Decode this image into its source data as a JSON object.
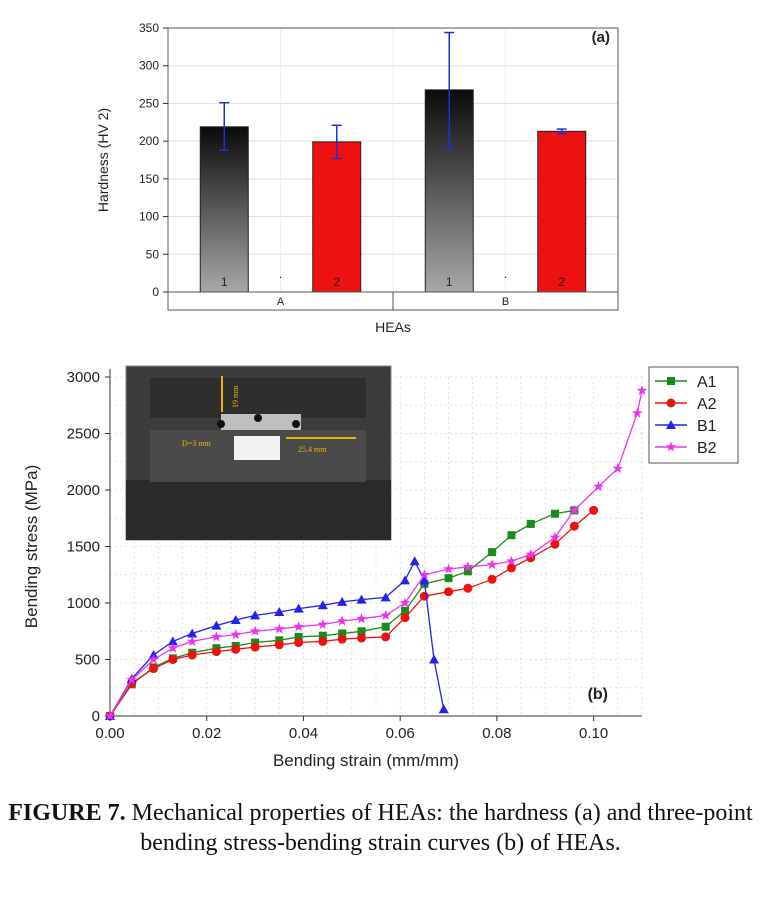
{
  "chart_data": [
    {
      "type": "bar",
      "panel_label": "(a)",
      "ylabel": "Hardness (HV 2)",
      "xlabel": "HEAs",
      "ylim": [
        0,
        350
      ],
      "yticks": [
        0,
        50,
        100,
        150,
        200,
        250,
        300,
        350
      ],
      "groups": [
        "A",
        "B"
      ],
      "categories": [
        "1",
        "2",
        "1",
        "2"
      ],
      "group_of_category": [
        "A",
        "A",
        "B",
        "B"
      ],
      "values": [
        219,
        199,
        268,
        213
      ],
      "errors_low": [
        188,
        177,
        191,
        210
      ],
      "errors_high": [
        251,
        221,
        344,
        216
      ],
      "bar_colors": [
        "gradient-black-gray",
        "#ee1111",
        "gradient-black-gray",
        "#ee1111"
      ],
      "separator_marks": [
        ".",
        "."
      ],
      "grid": true
    },
    {
      "type": "line",
      "panel_label": "(b)",
      "xlabel": "Bending strain (mm/mm)",
      "ylabel": "Bending stress (MPa)",
      "xlim": [
        0,
        0.11
      ],
      "ylim": [
        0,
        3000
      ],
      "xticks": [
        "0.00",
        "0.02",
        "0.04",
        "0.06",
        "0.08",
        "0.10"
      ],
      "yticks": [
        "0",
        "500",
        "1000",
        "1500",
        "2000",
        "2500",
        "3000"
      ],
      "grid": true,
      "legend_position": "top-right",
      "series": [
        {
          "name": "A1",
          "color": "#1a8a1a",
          "marker": "square",
          "x": [
            0.0,
            0.0045,
            0.009,
            0.013,
            0.017,
            0.022,
            0.026,
            0.03,
            0.035,
            0.039,
            0.044,
            0.048,
            0.052,
            0.057,
            0.061,
            0.065,
            0.07,
            0.074,
            0.079,
            0.083,
            0.087,
            0.092,
            0.096
          ],
          "y": [
            0,
            280,
            430,
            510,
            560,
            600,
            620,
            650,
            670,
            700,
            710,
            730,
            750,
            790,
            930,
            1170,
            1220,
            1280,
            1450,
            1600,
            1700,
            1790,
            1820
          ]
        },
        {
          "name": "A2",
          "color": "#ee1111",
          "marker": "circle",
          "x": [
            0.0,
            0.0045,
            0.009,
            0.013,
            0.017,
            0.022,
            0.026,
            0.03,
            0.035,
            0.039,
            0.044,
            0.048,
            0.052,
            0.057,
            0.061,
            0.065,
            0.07,
            0.074,
            0.079,
            0.083,
            0.087,
            0.092,
            0.096,
            0.1
          ],
          "y": [
            0,
            290,
            420,
            500,
            540,
            570,
            590,
            610,
            630,
            650,
            660,
            680,
            690,
            700,
            870,
            1060,
            1100,
            1130,
            1210,
            1310,
            1400,
            1520,
            1680,
            1820
          ]
        },
        {
          "name": "B1",
          "color": "#2222ee",
          "marker": "triangle",
          "x": [
            0.0,
            0.0045,
            0.009,
            0.013,
            0.017,
            0.022,
            0.026,
            0.03,
            0.035,
            0.039,
            0.044,
            0.048,
            0.052,
            0.057,
            0.061,
            0.063,
            0.065,
            0.067,
            0.069
          ],
          "y": [
            0,
            330,
            540,
            660,
            730,
            800,
            850,
            890,
            920,
            950,
            980,
            1010,
            1030,
            1050,
            1200,
            1370,
            1200,
            500,
            60
          ]
        },
        {
          "name": "B2",
          "color": "#ee33ee",
          "marker": "star",
          "x": [
            0.0,
            0.0045,
            0.009,
            0.013,
            0.017,
            0.022,
            0.026,
            0.03,
            0.035,
            0.039,
            0.044,
            0.048,
            0.052,
            0.057,
            0.061,
            0.065,
            0.07,
            0.074,
            0.079,
            0.083,
            0.087,
            0.092,
            0.096,
            0.101,
            0.105,
            0.109,
            0.11
          ],
          "y": [
            0,
            320,
            500,
            600,
            660,
            700,
            720,
            750,
            770,
            790,
            810,
            840,
            860,
            890,
            1000,
            1250,
            1300,
            1320,
            1340,
            1370,
            1430,
            1580,
            1820,
            2030,
            2190,
            2680,
            2880
          ]
        }
      ],
      "inset": {
        "annotations": [
          "19 mm",
          "D=3 mm",
          "25.4 mm"
        ]
      }
    }
  ],
  "caption": {
    "label": "FIGURE 7.",
    "text": " Mechanical properties of HEAs: the hardness (a) and three-point bending stress-bending strain curves (b) of HEAs."
  }
}
